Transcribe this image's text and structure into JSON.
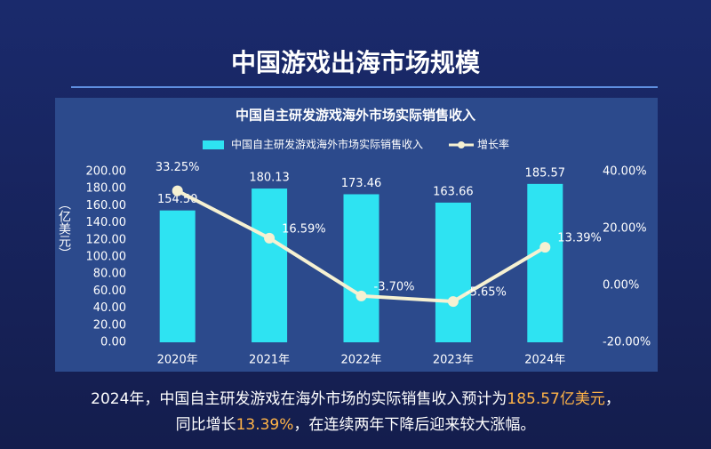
{
  "chart_data": {
    "type": "bar-line",
    "title": "中国游戏出海市场规模",
    "subtitle": "中国自主研发游戏海外市场实际销售收入",
    "ylabel": "（亿美元）",
    "categories": [
      "2020年",
      "2021年",
      "2022年",
      "2023年",
      "2024年"
    ],
    "series": [
      {
        "name": "中国自主研发游戏海外市场实际销售收入",
        "type": "bar",
        "color": "#2ee3f2",
        "values": [
          154.5,
          180.13,
          173.46,
          163.66,
          185.57
        ],
        "value_labels": [
          "154.50",
          "180.13",
          "173.46",
          "163.66",
          "185.57"
        ]
      },
      {
        "name": "增长率",
        "type": "line",
        "axis": "y2",
        "color": "#f6f1d2",
        "values": [
          33.25,
          16.59,
          -3.7,
          -5.65,
          13.39
        ],
        "value_labels": [
          "33.25%",
          "16.59%",
          "-3.70%",
          "-5.65%",
          "13.39%"
        ]
      }
    ],
    "ylim": [
      0,
      200
    ],
    "yticks": [
      {
        "value": 0,
        "label": "0.00"
      },
      {
        "value": 20,
        "label": "20.00"
      },
      {
        "value": 40,
        "label": "40.00"
      },
      {
        "value": 60,
        "label": "60.00"
      },
      {
        "value": 80,
        "label": "80.00"
      },
      {
        "value": 100,
        "label": "100.00"
      },
      {
        "value": 120,
        "label": "120.00"
      },
      {
        "value": 140,
        "label": "140.00"
      },
      {
        "value": 160,
        "label": "160.00"
      },
      {
        "value": 180,
        "label": "180.00"
      },
      {
        "value": 200,
        "label": "200.00"
      }
    ],
    "y2lim": [
      -20,
      40
    ],
    "y2ticks": [
      {
        "value": -20,
        "label": "-20.00%"
      },
      {
        "value": 0,
        "label": "0.00%"
      },
      {
        "value": 20,
        "label": "20.00%"
      },
      {
        "value": 40,
        "label": "40.00%"
      }
    ],
    "legend": "top",
    "annotations": [
      "2024年，中国自主研发游戏在海外市场的实际销售收入预计为",
      "185.57亿美元",
      "，",
      "同比增长",
      "13.39%",
      "，在连续两年下降后迎来较大涨幅。"
    ]
  }
}
